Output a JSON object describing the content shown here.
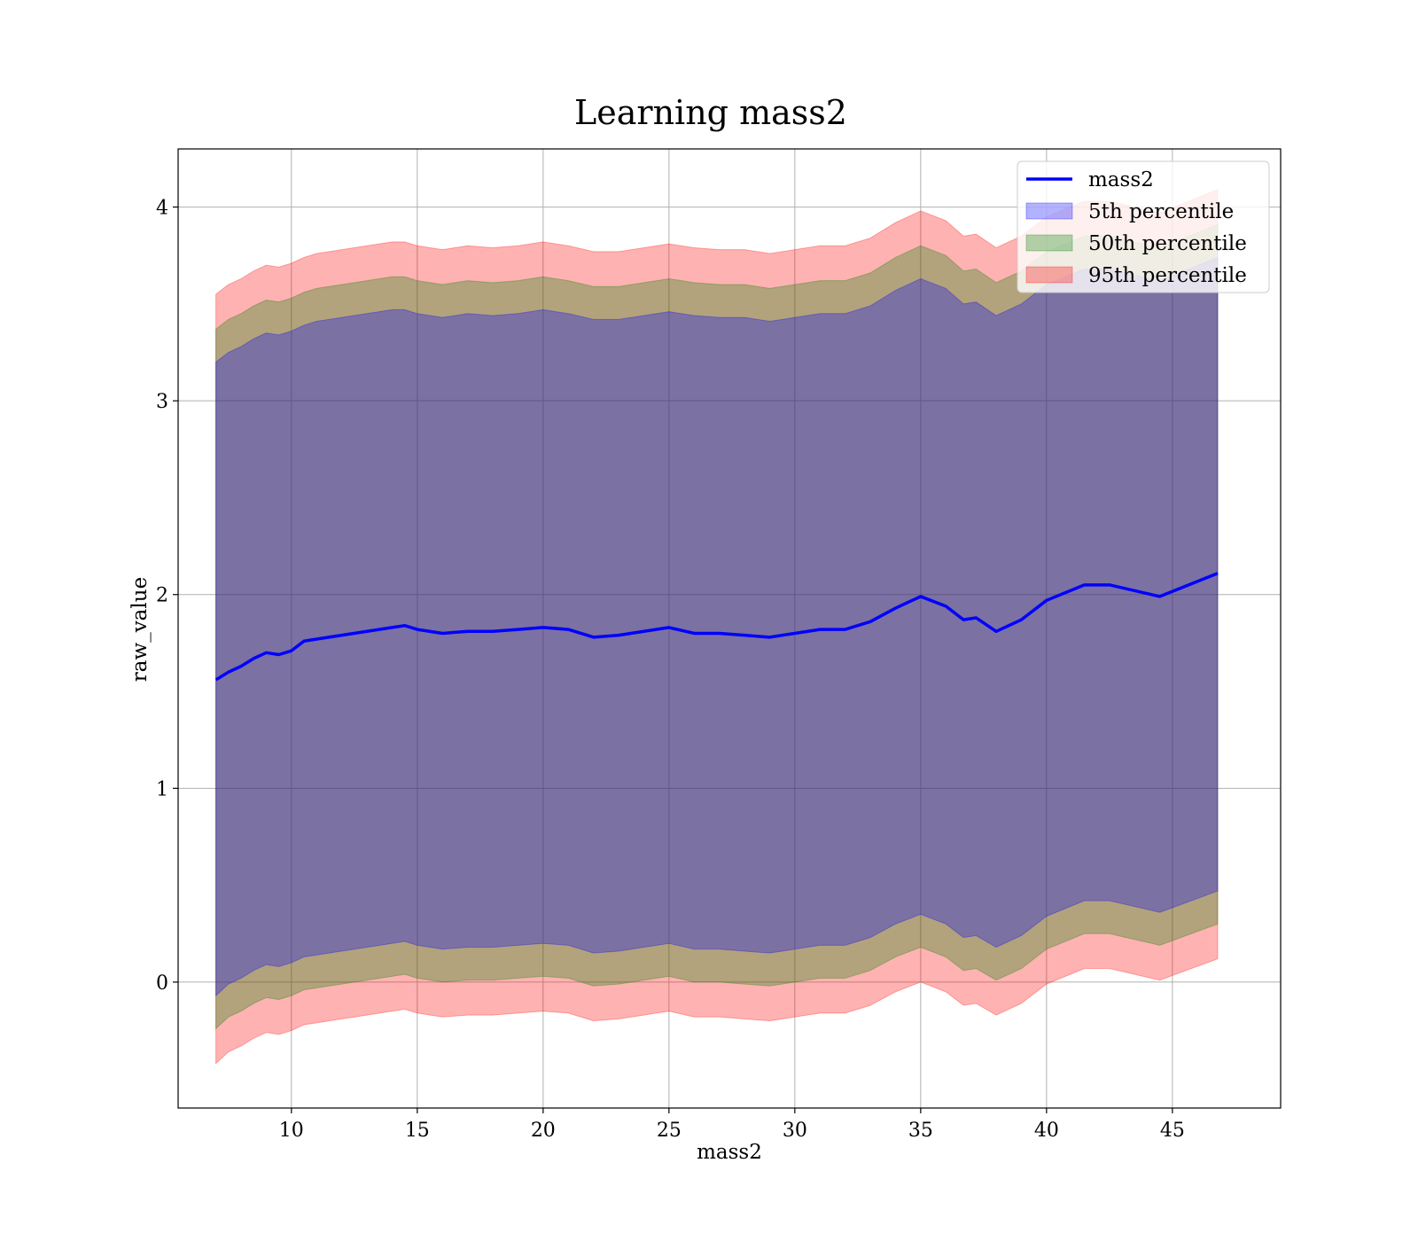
{
  "chart_data": {
    "type": "area",
    "title": "Learning mass2",
    "xlabel": "mass2",
    "ylabel": "raw_value",
    "xlim": [
      5.5,
      49.3
    ],
    "ylim": [
      -0.65,
      4.3
    ],
    "xticks": [
      10,
      15,
      20,
      25,
      30,
      35,
      40,
      45
    ],
    "yticks": [
      0,
      1,
      2,
      3,
      4
    ],
    "grid": true,
    "legend_position": "top-right",
    "legend": [
      {
        "label": "mass2",
        "kind": "line",
        "color": "#0000ff"
      },
      {
        "label": "5th percentile",
        "kind": "patch",
        "color": "#0000ff"
      },
      {
        "label": "50th percentile",
        "kind": "patch",
        "color": "#008000"
      },
      {
        "label": "95th percentile",
        "kind": "patch",
        "color": "#ff0000"
      }
    ],
    "x": [
      7.0,
      7.5,
      8.0,
      8.5,
      9.0,
      9.5,
      10.0,
      10.5,
      11.0,
      12.0,
      13.0,
      14.0,
      14.5,
      15.0,
      16.0,
      17.0,
      18.0,
      19.0,
      20.0,
      21.0,
      22.0,
      23.0,
      24.0,
      25.0,
      26.0,
      27.0,
      28.0,
      29.0,
      30.0,
      31.0,
      32.0,
      33.0,
      34.0,
      35.0,
      36.0,
      36.7,
      37.2,
      38.0,
      39.0,
      40.0,
      41.5,
      42.5,
      44.5,
      46.8
    ],
    "series": [
      {
        "name": "mass2",
        "values": [
          1.56,
          1.6,
          1.63,
          1.67,
          1.7,
          1.69,
          1.71,
          1.76,
          1.77,
          1.79,
          1.81,
          1.83,
          1.84,
          1.82,
          1.8,
          1.81,
          1.81,
          1.82,
          1.83,
          1.82,
          1.78,
          1.79,
          1.81,
          1.83,
          1.8,
          1.8,
          1.79,
          1.78,
          1.8,
          1.82,
          1.82,
          1.86,
          1.93,
          1.99,
          1.94,
          1.87,
          1.88,
          1.81,
          1.87,
          1.97,
          2.05,
          2.05,
          1.99,
          2.11
        ]
      }
    ],
    "bands": [
      {
        "name": "95th percentile",
        "color": "#ff0000",
        "upper": [
          3.55,
          3.6,
          3.63,
          3.67,
          3.7,
          3.69,
          3.71,
          3.74,
          3.76,
          3.78,
          3.8,
          3.82,
          3.82,
          3.8,
          3.78,
          3.8,
          3.79,
          3.8,
          3.82,
          3.8,
          3.77,
          3.77,
          3.79,
          3.81,
          3.79,
          3.78,
          3.78,
          3.76,
          3.78,
          3.8,
          3.8,
          3.84,
          3.92,
          3.98,
          3.93,
          3.85,
          3.86,
          3.79,
          3.85,
          3.95,
          4.03,
          4.03,
          3.97,
          4.09
        ],
        "lower": [
          -0.42,
          -0.36,
          -0.33,
          -0.29,
          -0.26,
          -0.27,
          -0.25,
          -0.22,
          -0.21,
          -0.19,
          -0.17,
          -0.15,
          -0.14,
          -0.16,
          -0.18,
          -0.17,
          -0.17,
          -0.16,
          -0.15,
          -0.16,
          -0.2,
          -0.19,
          -0.17,
          -0.15,
          -0.18,
          -0.18,
          -0.19,
          -0.2,
          -0.18,
          -0.16,
          -0.16,
          -0.12,
          -0.05,
          0.0,
          -0.05,
          -0.12,
          -0.11,
          -0.17,
          -0.11,
          -0.01,
          0.07,
          0.07,
          0.01,
          0.12
        ]
      },
      {
        "name": "50th percentile",
        "color": "#008000",
        "upper": [
          3.37,
          3.42,
          3.45,
          3.49,
          3.52,
          3.51,
          3.53,
          3.56,
          3.58,
          3.6,
          3.62,
          3.64,
          3.64,
          3.62,
          3.6,
          3.62,
          3.61,
          3.62,
          3.64,
          3.62,
          3.59,
          3.59,
          3.61,
          3.63,
          3.61,
          3.6,
          3.6,
          3.58,
          3.6,
          3.62,
          3.62,
          3.66,
          3.74,
          3.8,
          3.75,
          3.67,
          3.68,
          3.61,
          3.67,
          3.77,
          3.85,
          3.85,
          3.79,
          3.91
        ],
        "lower": [
          -0.24,
          -0.18,
          -0.15,
          -0.11,
          -0.08,
          -0.09,
          -0.07,
          -0.04,
          -0.03,
          -0.01,
          0.01,
          0.03,
          0.04,
          0.02,
          0.0,
          0.01,
          0.01,
          0.02,
          0.03,
          0.02,
          -0.02,
          -0.01,
          0.01,
          0.03,
          0.0,
          0.0,
          -0.01,
          -0.02,
          0.0,
          0.02,
          0.02,
          0.06,
          0.13,
          0.18,
          0.13,
          0.06,
          0.07,
          0.01,
          0.07,
          0.17,
          0.25,
          0.25,
          0.19,
          0.3
        ]
      },
      {
        "name": "5th percentile",
        "color": "#0000ff",
        "upper": [
          3.2,
          3.25,
          3.28,
          3.32,
          3.35,
          3.34,
          3.36,
          3.39,
          3.41,
          3.43,
          3.45,
          3.47,
          3.47,
          3.45,
          3.43,
          3.45,
          3.44,
          3.45,
          3.47,
          3.45,
          3.42,
          3.42,
          3.44,
          3.46,
          3.44,
          3.43,
          3.43,
          3.41,
          3.43,
          3.45,
          3.45,
          3.49,
          3.57,
          3.63,
          3.58,
          3.5,
          3.51,
          3.44,
          3.5,
          3.6,
          3.68,
          3.68,
          3.62,
          3.74
        ],
        "lower": [
          -0.07,
          -0.01,
          0.02,
          0.06,
          0.09,
          0.08,
          0.1,
          0.13,
          0.14,
          0.16,
          0.18,
          0.2,
          0.21,
          0.19,
          0.17,
          0.18,
          0.18,
          0.19,
          0.2,
          0.19,
          0.15,
          0.16,
          0.18,
          0.2,
          0.17,
          0.17,
          0.16,
          0.15,
          0.17,
          0.19,
          0.19,
          0.23,
          0.3,
          0.35,
          0.3,
          0.23,
          0.24,
          0.18,
          0.24,
          0.34,
          0.42,
          0.42,
          0.36,
          0.47
        ]
      }
    ]
  }
}
